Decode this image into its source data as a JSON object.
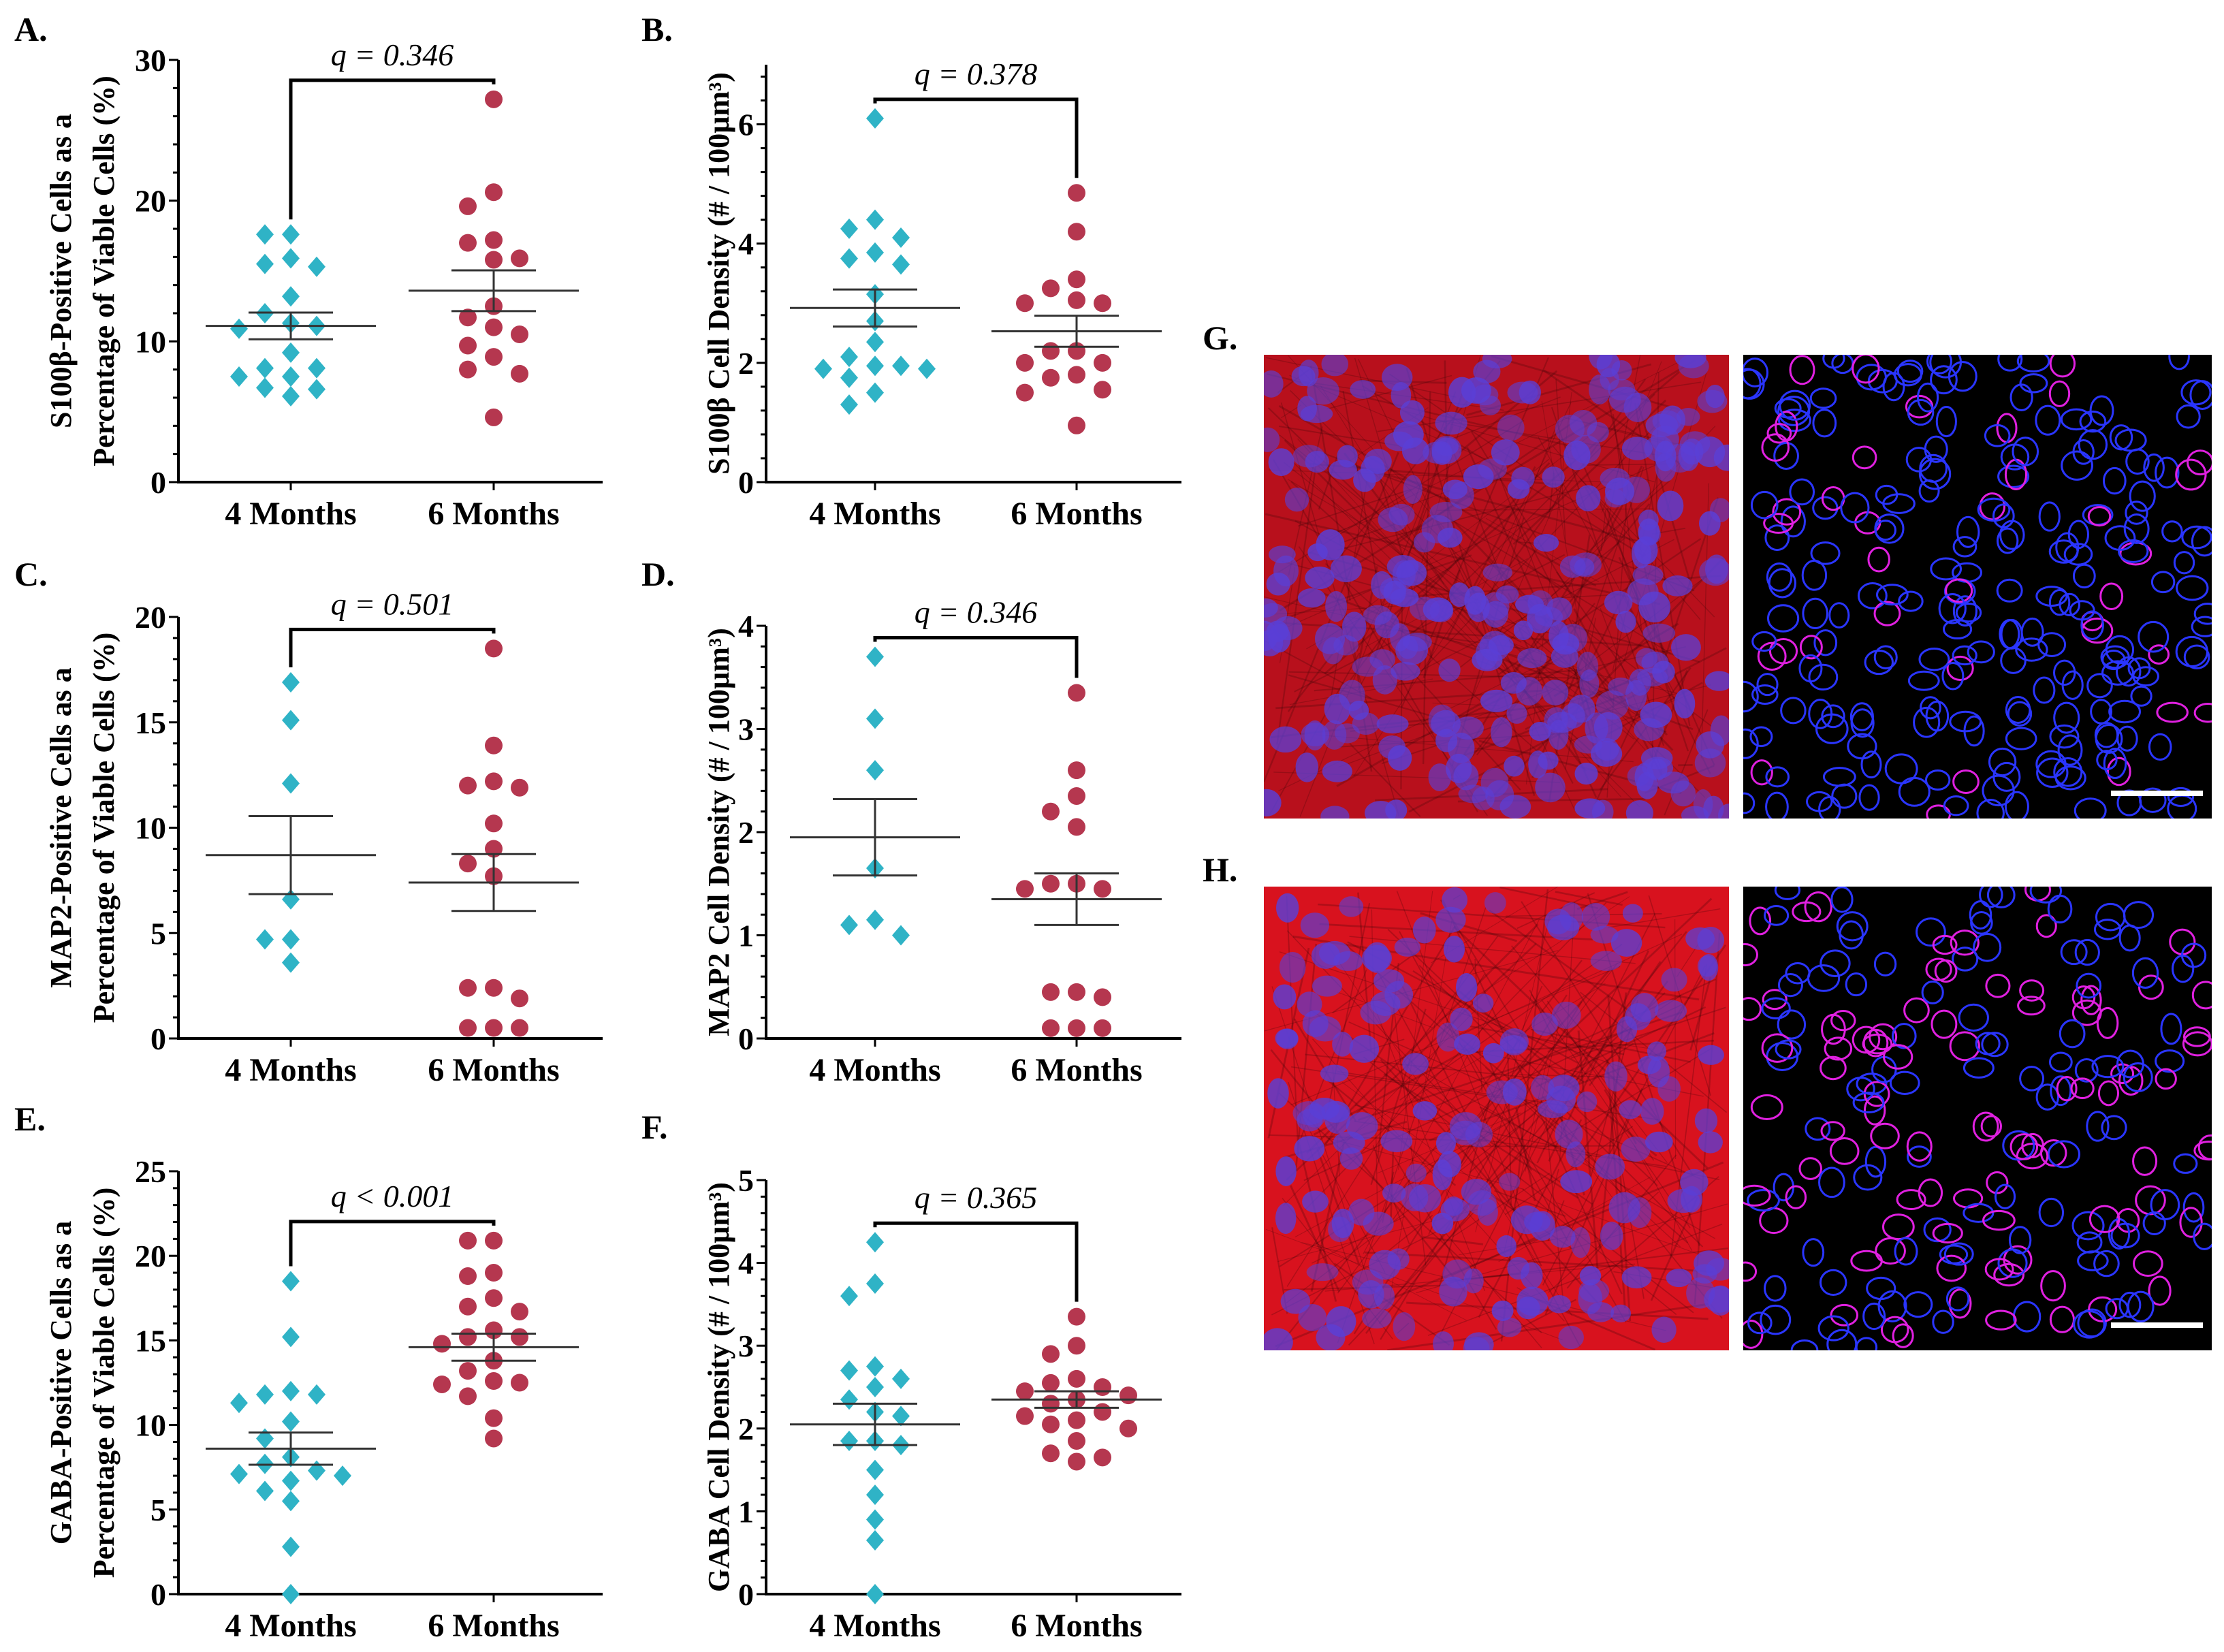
{
  "colors": {
    "four_months": "#2fb3c6",
    "six_months": "#b5374f",
    "scale_bar": "#ffffff"
  },
  "chart_data": [
    {
      "type": "scatter",
      "panel": "A.",
      "ylabel": [
        "S100β-Positive Cells as a",
        "Percentage of Viable Cells (%)"
      ],
      "ylim": [
        0,
        30
      ],
      "yticks": [
        "0",
        "10",
        "20",
        "30"
      ],
      "ytick_values": [
        0,
        10,
        20,
        30
      ],
      "categories": [
        "4 Months",
        "6 Months"
      ],
      "q_label": "q = 0.346",
      "series": [
        {
          "name": "4 Months",
          "marker": "diamond",
          "values": [
            17.6,
            17.6,
            15.9,
            15.5,
            15.3,
            13.2,
            12.0,
            11.3,
            11.1,
            10.9,
            9.2,
            8.1,
            8.1,
            7.5,
            7.5,
            6.7,
            6.6,
            6.1
          ],
          "mean": 11.1,
          "sem": 0.95
        },
        {
          "name": "6 Months",
          "marker": "circle",
          "values": [
            27.2,
            20.6,
            19.6,
            17.2,
            17.0,
            15.9,
            15.8,
            12.5,
            11.7,
            11.0,
            10.5,
            9.7,
            8.9,
            8.0,
            7.7,
            4.6
          ],
          "mean": 13.6,
          "sem": 1.45
        }
      ]
    },
    {
      "type": "scatter",
      "panel": "B.",
      "ylabel": [
        "S100β Cell Density (# / 100µm³)"
      ],
      "ylim": [
        0,
        7
      ],
      "yticks": [
        "0",
        "2",
        "4",
        "6"
      ],
      "ytick_values": [
        0,
        2,
        4,
        6
      ],
      "categories": [
        "4 Months",
        "6 Months"
      ],
      "q_label": "q = 0.378",
      "series": [
        {
          "name": "4 Months",
          "marker": "diamond",
          "values": [
            6.1,
            4.4,
            4.25,
            4.1,
            3.85,
            3.75,
            3.65,
            3.15,
            2.7,
            2.35,
            2.1,
            1.95,
            1.95,
            1.9,
            1.9,
            1.75,
            1.5,
            1.3
          ],
          "mean": 2.92,
          "sem": 0.31
        },
        {
          "name": "6 Months",
          "marker": "circle",
          "values": [
            4.85,
            4.2,
            3.4,
            3.25,
            3.05,
            3.0,
            3.0,
            2.2,
            2.2,
            2.0,
            2.0,
            1.8,
            1.75,
            1.55,
            1.5,
            0.95
          ],
          "mean": 2.53,
          "sem": 0.26
        }
      ]
    },
    {
      "type": "scatter",
      "panel": "C.",
      "ylabel": [
        "MAP2-Positive Cells as a",
        "Percentage of Viable Cells (%)"
      ],
      "ylim": [
        0,
        20
      ],
      "yticks": [
        "0",
        "5",
        "10",
        "15",
        "20"
      ],
      "ytick_values": [
        0,
        5,
        10,
        15,
        20
      ],
      "categories": [
        "4 Months",
        "6 Months"
      ],
      "q_label": "q = 0.501",
      "series": [
        {
          "name": "4 Months",
          "marker": "diamond",
          "values": [
            16.9,
            15.1,
            12.1,
            6.6,
            4.7,
            4.7,
            3.6
          ],
          "mean": 8.7,
          "sem": 1.85
        },
        {
          "name": "6 Months",
          "marker": "circle",
          "values": [
            18.5,
            13.9,
            12.2,
            12.0,
            11.9,
            10.2,
            9.0,
            8.3,
            7.7,
            2.4,
            2.4,
            1.9,
            0.5,
            0.5,
            0.5
          ],
          "mean": 7.4,
          "sem": 1.35
        }
      ]
    },
    {
      "type": "scatter",
      "panel": "D.",
      "ylabel": [
        "MAP2 Cell Density (# / 100µm³)"
      ],
      "ylim": [
        0,
        4
      ],
      "yticks": [
        "0",
        "1",
        "2",
        "3",
        "4"
      ],
      "ytick_values": [
        0,
        1,
        2,
        3,
        4
      ],
      "categories": [
        "4 Months",
        "6 Months"
      ],
      "q_label": "q = 0.346",
      "series": [
        {
          "name": "4 Months",
          "marker": "diamond",
          "values": [
            3.7,
            3.1,
            2.6,
            1.65,
            1.15,
            1.1,
            1.0
          ],
          "mean": 1.95,
          "sem": 0.37
        },
        {
          "name": "6 Months",
          "marker": "circle",
          "values": [
            3.35,
            2.6,
            2.35,
            2.2,
            2.05,
            1.5,
            1.5,
            1.45,
            1.45,
            0.45,
            0.45,
            0.4,
            0.1,
            0.1,
            0.1
          ],
          "mean": 1.35,
          "sem": 0.25
        }
      ]
    },
    {
      "type": "scatter",
      "panel": "E.",
      "ylabel": [
        "GABA-Positive Cells as a",
        "Percentage of Viable Cells (%)"
      ],
      "ylim": [
        0,
        25
      ],
      "yticks": [
        "0",
        "5",
        "10",
        "15",
        "20",
        "25"
      ],
      "ytick_values": [
        0,
        5,
        10,
        15,
        20,
        25
      ],
      "categories": [
        "4 Months",
        "6 Months"
      ],
      "q_label": "q < 0.001",
      "series": [
        {
          "name": "4 Months",
          "marker": "diamond",
          "values": [
            18.5,
            15.2,
            12.0,
            11.8,
            11.8,
            11.3,
            10.2,
            9.2,
            8.1,
            7.7,
            7.3,
            7.1,
            7.0,
            6.7,
            6.1,
            5.5,
            2.8,
            0.0
          ],
          "mean": 8.6,
          "sem": 0.95
        },
        {
          "name": "6 Months",
          "marker": "circle",
          "values": [
            20.9,
            20.9,
            19.0,
            18.8,
            17.5,
            17.0,
            16.7,
            15.6,
            15.2,
            15.2,
            14.8,
            13.8,
            13.2,
            12.6,
            12.5,
            12.4,
            11.7,
            10.4,
            9.2
          ],
          "mean": 14.6,
          "sem": 0.8
        }
      ]
    },
    {
      "type": "scatter",
      "panel": "F.",
      "ylabel": [
        "GABA Cell Density (# / 100µm³)"
      ],
      "ylim": [
        0,
        5
      ],
      "yticks": [
        "0",
        "1",
        "2",
        "3",
        "4",
        "5"
      ],
      "ytick_values": [
        0,
        1,
        2,
        3,
        4,
        5
      ],
      "categories": [
        "4 Months",
        "6 Months"
      ],
      "q_label": "q = 0.365",
      "series": [
        {
          "name": "4 Months",
          "marker": "diamond",
          "values": [
            4.25,
            3.75,
            3.6,
            2.75,
            2.7,
            2.6,
            2.5,
            2.35,
            2.2,
            2.15,
            1.85,
            1.85,
            1.8,
            1.5,
            1.2,
            0.9,
            0.65,
            0.0
          ],
          "mean": 2.05,
          "sem": 0.25
        },
        {
          "name": "6 Months",
          "marker": "circle",
          "values": [
            3.35,
            3.0,
            2.9,
            2.6,
            2.55,
            2.5,
            2.45,
            2.4,
            2.35,
            2.3,
            2.2,
            2.15,
            2.1,
            2.05,
            2.0,
            1.85,
            1.7,
            1.65,
            1.6
          ],
          "mean": 2.35,
          "sem": 0.1
        }
      ]
    }
  ],
  "micrographs": {
    "panels": [
      {
        "label": "G.",
        "images": [
          "red-blue-stain",
          "segmented-outlines"
        ]
      },
      {
        "label": "H.",
        "images": [
          "red-blue-stain",
          "segmented-outlines"
        ]
      }
    ]
  }
}
